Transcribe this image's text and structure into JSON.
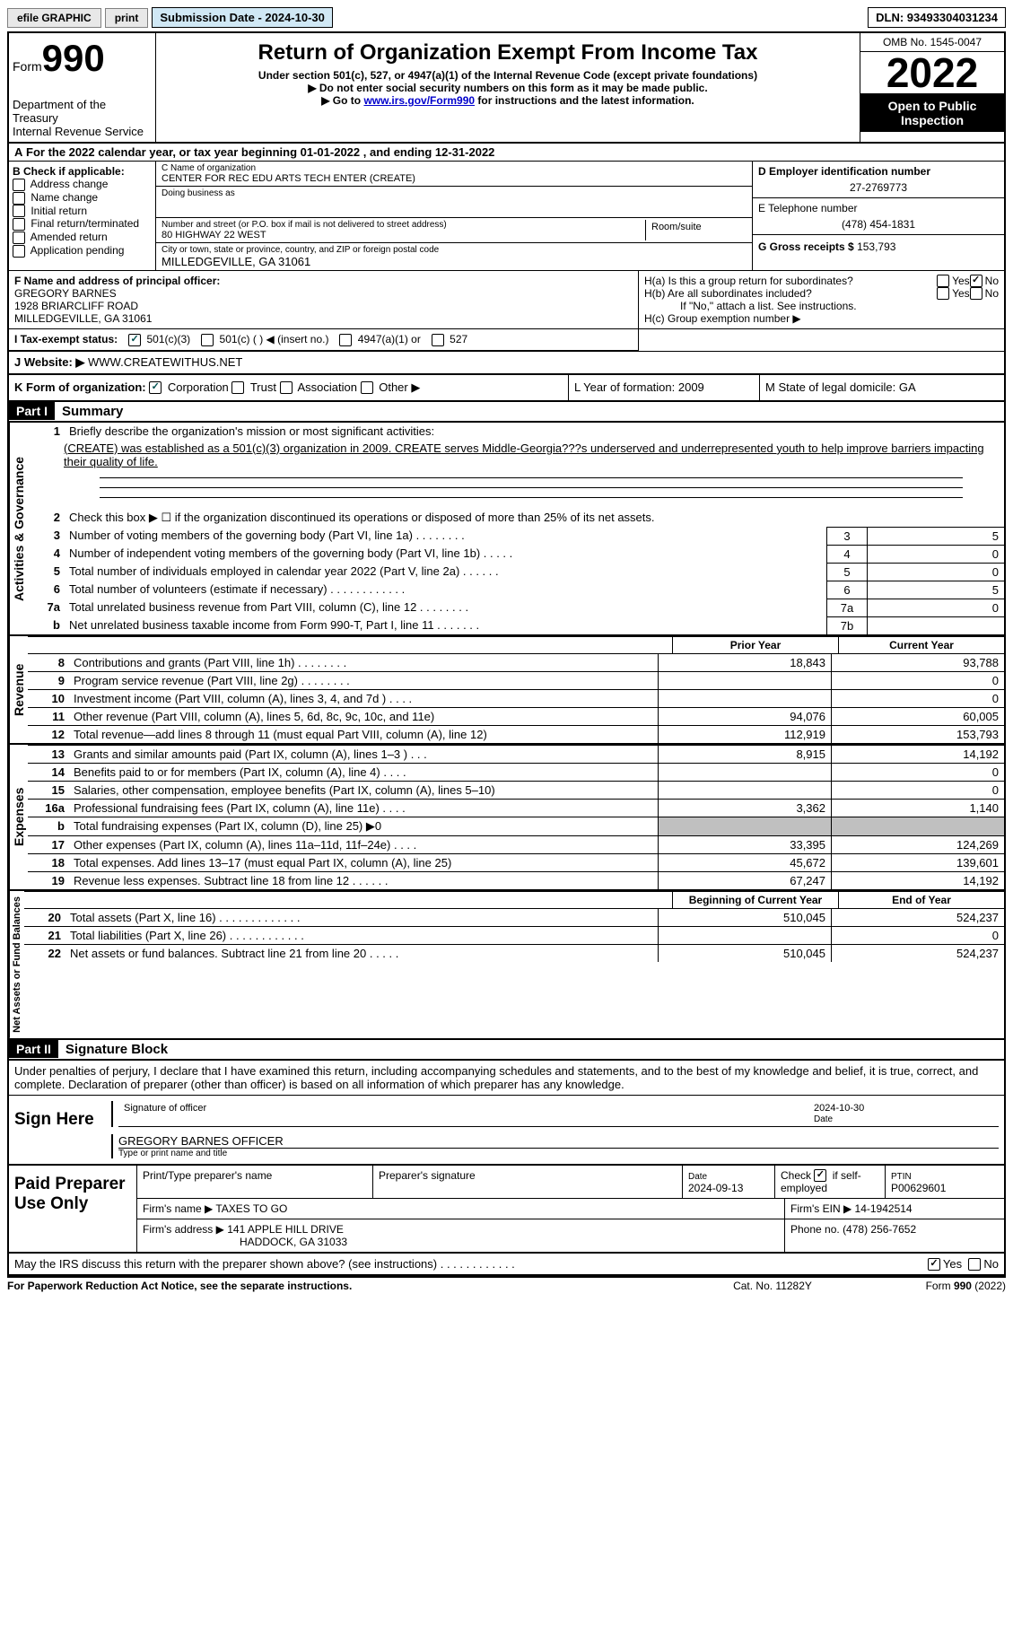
{
  "top": {
    "efile": "efile GRAPHIC",
    "print": "print",
    "sub_date_label": "Submission Date - 2024-10-30",
    "dln": "DLN: 93493304031234"
  },
  "header": {
    "form_word": "Form",
    "form_num": "990",
    "dept": "Department of the Treasury",
    "irs": "Internal Revenue Service",
    "title": "Return of Organization Exempt From Income Tax",
    "subtitle": "Under section 501(c), 527, or 4947(a)(1) of the Internal Revenue Code (except private foundations)",
    "note1": "▶ Do not enter social security numbers on this form as it may be made public.",
    "note2_pre": "▶ Go to ",
    "note2_link": "www.irs.gov/Form990",
    "note2_post": " for instructions and the latest information.",
    "omb": "OMB No. 1545-0047",
    "year": "2022",
    "open": "Open to Public Inspection"
  },
  "a": "For the 2022 calendar year, or tax year beginning 01-01-2022    , and ending 12-31-2022",
  "b": {
    "label": "B Check if applicable:",
    "opts": [
      "Address change",
      "Name change",
      "Initial return",
      "Final return/terminated",
      "Amended return",
      "Application pending"
    ]
  },
  "c": {
    "name_label": "C Name of organization",
    "name": "CENTER FOR REC EDU ARTS TECH ENTER (CREATE)",
    "dba_label": "Doing business as",
    "addr_label": "Number and street (or P.O. box if mail is not delivered to street address)",
    "addr": "80 HIGHWAY 22 WEST",
    "room_label": "Room/suite",
    "city_label": "City or town, state or province, country, and ZIP or foreign postal code",
    "city": "MILLEDGEVILLE, GA  31061"
  },
  "d": {
    "label": "D Employer identification number",
    "ein": "27-2769773",
    "e_label": "E Telephone number",
    "phone": "(478) 454-1831",
    "g_label": "G Gross receipts $",
    "g_val": "153,793"
  },
  "f": {
    "label": "F  Name and address of principal officer:",
    "name": "GREGORY BARNES",
    "addr1": "1928 BRIARCLIFF ROAD",
    "addr2": "MILLEDGEVILLE, GA  31061"
  },
  "h": {
    "a": "H(a)  Is this a group return for subordinates?",
    "b": "H(b)  Are all subordinates included?",
    "note": "If \"No,\" attach a list. See instructions.",
    "c": "H(c)  Group exemption number ▶",
    "yes": "Yes",
    "no": "No"
  },
  "i": {
    "label": "I    Tax-exempt status:",
    "o1": "501(c)(3)",
    "o2": "501(c) (  ) ◀ (insert no.)",
    "o3": "4947(a)(1) or",
    "o4": "527"
  },
  "j": {
    "label": "J   Website: ▶",
    "val": "WWW.CREATEWITHUS.NET"
  },
  "k": {
    "label": "K Form of organization:",
    "o1": "Corporation",
    "o2": "Trust",
    "o3": "Association",
    "o4": "Other ▶",
    "l": "L Year of formation: 2009",
    "m": "M State of legal domicile: GA"
  },
  "part1": {
    "header": "Part I",
    "title": "Summary",
    "ag_label": "Activities & Governance",
    "rev_label": "Revenue",
    "exp_label": "Expenses",
    "na_label": "Net Assets or Fund Balances",
    "l1": "Briefly describe the organization's mission or most significant activities:",
    "mission": "(CREATE) was established as a 501(c)(3) organization in 2009. CREATE serves Middle-Georgia???s underserved and underrepresented youth to help improve barriers impacting their quality of life.",
    "l2": "Check this box ▶ ☐  if the organization discontinued its operations or disposed of more than 25% of its net assets.",
    "lines_ag": [
      {
        "n": "3",
        "d": "Number of voting members of the governing body (Part VI, line 1a)   .    .    .    .    .    .    .    .",
        "b": "3",
        "v": "5"
      },
      {
        "n": "4",
        "d": "Number of independent voting members of the governing body (Part VI, line 1b)   .    .    .    .    .",
        "b": "4",
        "v": "0"
      },
      {
        "n": "5",
        "d": "Total number of individuals employed in calendar year 2022 (Part V, line 2a)   .    .    .    .    .    .",
        "b": "5",
        "v": "0"
      },
      {
        "n": "6",
        "d": "Total number of volunteers (estimate if necessary)    .    .    .    .    .    .    .    .    .    .    .    .",
        "b": "6",
        "v": "5"
      },
      {
        "n": "7a",
        "d": "Total unrelated business revenue from Part VIII, column (C), line 12   .    .    .    .    .    .    .    .",
        "b": "7a",
        "v": "0"
      },
      {
        "n": "b",
        "d": "Net unrelated business taxable income from Form 990-T, Part I, line 11   .    .    .    .    .    .    .",
        "b": "7b",
        "v": ""
      }
    ],
    "prior": "Prior Year",
    "current": "Current Year",
    "rev_lines": [
      {
        "n": "8",
        "d": "Contributions and grants (Part VIII, line 1h)   .    .    .    .    .    .    .    .",
        "p": "18,843",
        "c": "93,788"
      },
      {
        "n": "9",
        "d": "Program service revenue (Part VIII, line 2g)   .    .    .    .    .    .    .    .",
        "p": "",
        "c": "0"
      },
      {
        "n": "10",
        "d": "Investment income (Part VIII, column (A), lines 3, 4, and 7d )   .    .    .    .",
        "p": "",
        "c": "0"
      },
      {
        "n": "11",
        "d": "Other revenue (Part VIII, column (A), lines 5, 6d, 8c, 9c, 10c, and 11e)",
        "p": "94,076",
        "c": "60,005"
      },
      {
        "n": "12",
        "d": "Total revenue—add lines 8 through 11 (must equal Part VIII, column (A), line 12)",
        "p": "112,919",
        "c": "153,793"
      }
    ],
    "exp_lines": [
      {
        "n": "13",
        "d": "Grants and similar amounts paid (Part IX, column (A), lines 1–3 )   .   .   .",
        "p": "8,915",
        "c": "14,192"
      },
      {
        "n": "14",
        "d": "Benefits paid to or for members (Part IX, column (A), line 4)   .    .    .    .",
        "p": "",
        "c": "0"
      },
      {
        "n": "15",
        "d": "Salaries, other compensation, employee benefits (Part IX, column (A), lines 5–10)",
        "p": "",
        "c": "0"
      },
      {
        "n": "16a",
        "d": "Professional fundraising fees (Part IX, column (A), line 11e)   .    .    .    .",
        "p": "3,362",
        "c": "1,140"
      },
      {
        "n": "b",
        "d": "Total fundraising expenses (Part IX, column (D), line 25) ▶0",
        "p": "shaded",
        "c": "shaded"
      },
      {
        "n": "17",
        "d": "Other expenses (Part IX, column (A), lines 11a–11d, 11f–24e)   .    .    .    .",
        "p": "33,395",
        "c": "124,269"
      },
      {
        "n": "18",
        "d": "Total expenses. Add lines 13–17 (must equal Part IX, column (A), line 25)",
        "p": "45,672",
        "c": "139,601"
      },
      {
        "n": "19",
        "d": "Revenue less expenses. Subtract line 18 from line 12   .    .    .    .    .    .",
        "p": "67,247",
        "c": "14,192"
      }
    ],
    "boy": "Beginning of Current Year",
    "eoy": "End of Year",
    "na_lines": [
      {
        "n": "20",
        "d": "Total assets (Part X, line 16)  .    .    .    .    .    .    .    .    .    .    .    .    .",
        "p": "510,045",
        "c": "524,237"
      },
      {
        "n": "21",
        "d": "Total liabilities (Part X, line 26)   .    .    .    .    .    .    .    .    .    .    .    .",
        "p": "",
        "c": "0"
      },
      {
        "n": "22",
        "d": "Net assets or fund balances. Subtract line 21 from line 20   .    .    .    .    .",
        "p": "510,045",
        "c": "524,237"
      }
    ]
  },
  "part2": {
    "header": "Part II",
    "title": "Signature Block",
    "intro": "Under penalties of perjury, I declare that I have examined this return, including accompanying schedules and statements, and to the best of my knowledge and belief, it is true, correct, and complete. Declaration of preparer (other than officer) is based on all information of which preparer has any knowledge.",
    "sign_here": "Sign Here",
    "sig_officer": "Signature of officer",
    "sig_date": "2024-10-30",
    "date_label": "Date",
    "officer_name": "GREGORY BARNES  OFFICER",
    "type_name": "Type or print name and title",
    "paid_label": "Paid Preparer Use Only",
    "prep_name_label": "Print/Type preparer's name",
    "prep_sig_label": "Preparer's signature",
    "prep_date_label": "Date",
    "prep_date": "2024-09-13",
    "check_label": "Check ☑ if self-employed",
    "ptin_label": "PTIN",
    "ptin": "P00629601",
    "firm_name_label": "Firm's name    ▶",
    "firm_name": "TAXES TO GO",
    "firm_ein_label": "Firm's EIN ▶",
    "firm_ein": "14-1942514",
    "firm_addr_label": "Firm's address ▶",
    "firm_addr": "141 APPLE HILL DRIVE",
    "firm_city": "HADDOCK, GA  31033",
    "phone_label": "Phone no.",
    "phone": "(478) 256-7652",
    "discuss": "May the IRS discuss this return with the preparer shown above? (see instructions)   .    .    .    .    .    .    .    .    .    .    .    ."
  },
  "footer": {
    "left": "For Paperwork Reduction Act Notice, see the separate instructions.",
    "mid": "Cat. No. 11282Y",
    "right": "Form 990 (2022)"
  }
}
